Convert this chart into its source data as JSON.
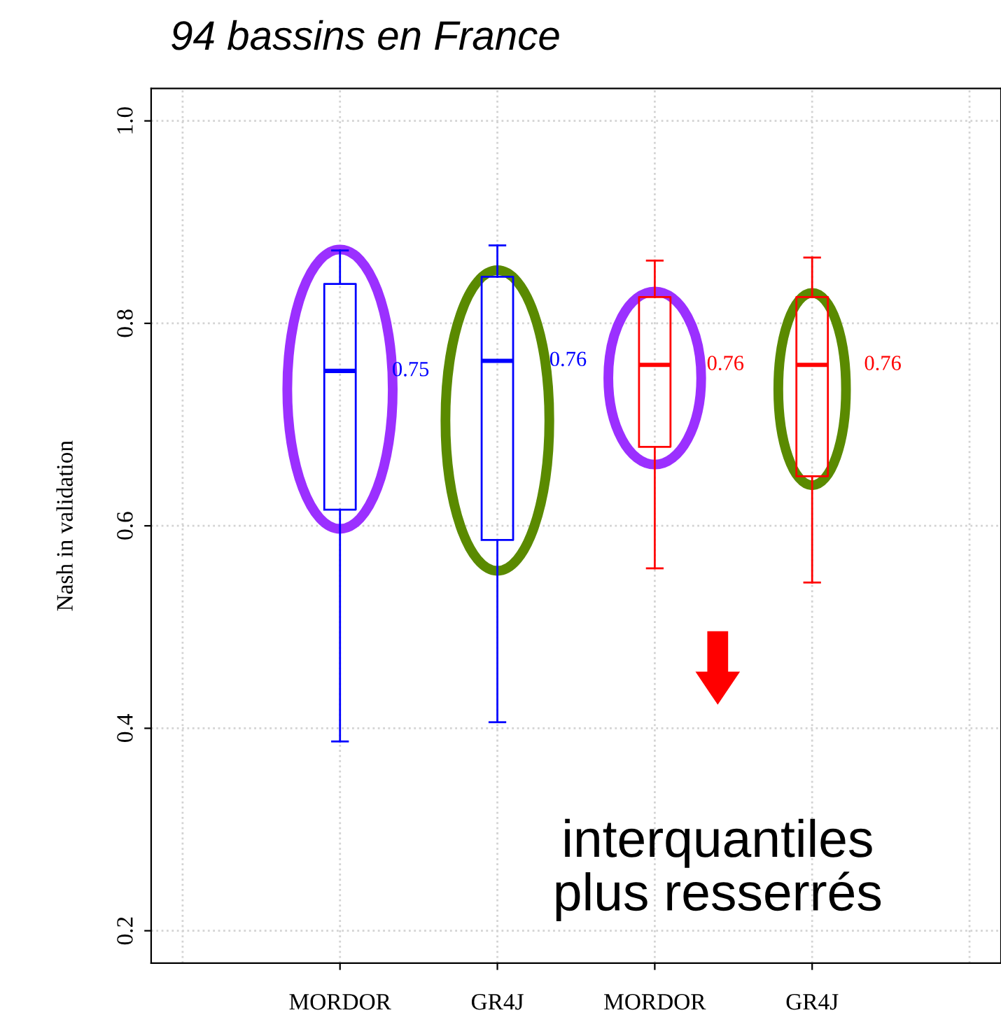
{
  "chart_data": {
    "type": "box",
    "title": "94 bassins en France",
    "ylabel": "Nash in validation",
    "categories": [
      "MORDOR",
      "GR4J",
      "MORDOR",
      "GR4J"
    ],
    "colors": [
      "#0000ff",
      "#0000ff",
      "#ff0000",
      "#ff0000"
    ],
    "boxes": [
      {
        "low": 0.387,
        "q1": 0.616,
        "median": 0.753,
        "q3": 0.839,
        "high": 0.872
      },
      {
        "low": 0.406,
        "q1": 0.586,
        "median": 0.763,
        "q3": 0.846,
        "high": 0.877
      },
      {
        "low": 0.558,
        "q1": 0.678,
        "median": 0.759,
        "q3": 0.826,
        "high": 0.862
      },
      {
        "low": 0.544,
        "q1": 0.649,
        "median": 0.759,
        "q3": 0.826,
        "high": 0.865
      }
    ],
    "value_labels": [
      "0.75",
      "0.76",
      "0.76",
      "0.76"
    ],
    "annotations": [
      "interquantiles\nplus resserrés"
    ],
    "ylim": [
      0.168,
      1.032
    ],
    "yticks": [
      0.2,
      0.4,
      0.6,
      0.8,
      {
        "value": 1,
        "label": "1.0"
      }
    ],
    "grid": true
  }
}
